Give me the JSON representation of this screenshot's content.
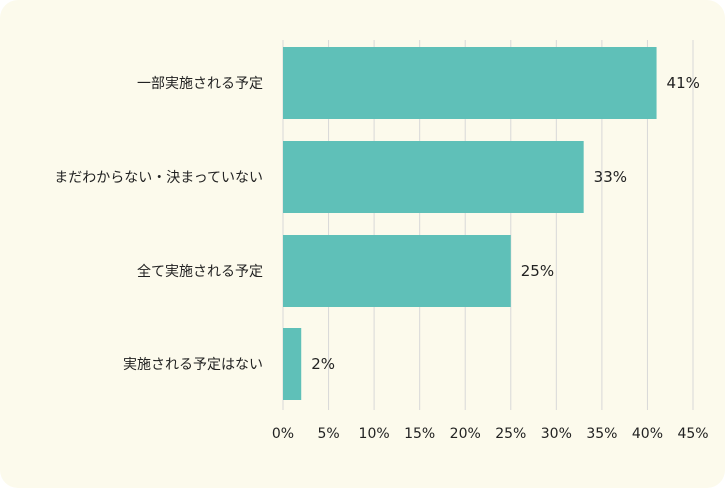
{
  "chart_data": {
    "type": "bar",
    "orientation": "horizontal",
    "categories": [
      "一部実施される予定",
      "まだわからない・決まっていない",
      "全て実施される予定",
      "実施される予定はない"
    ],
    "values": [
      41,
      33,
      25,
      2
    ],
    "value_labels": [
      "41%",
      "33%",
      "25%",
      "2%"
    ],
    "xlim": [
      0,
      45
    ],
    "ticks": [
      0,
      5,
      10,
      15,
      20,
      25,
      30,
      35,
      40,
      45
    ],
    "tick_labels": [
      "0%",
      "5%",
      "10%",
      "15%",
      "20%",
      "25%",
      "30%",
      "35%",
      "40%",
      "45%"
    ],
    "grid": "vertical",
    "title": "",
    "xlabel": "",
    "ylabel": "",
    "colors": {
      "bar": "#5fc0b8",
      "grid": "#d8d8d8",
      "panel": "#fcfaec",
      "text": "#222222"
    }
  }
}
